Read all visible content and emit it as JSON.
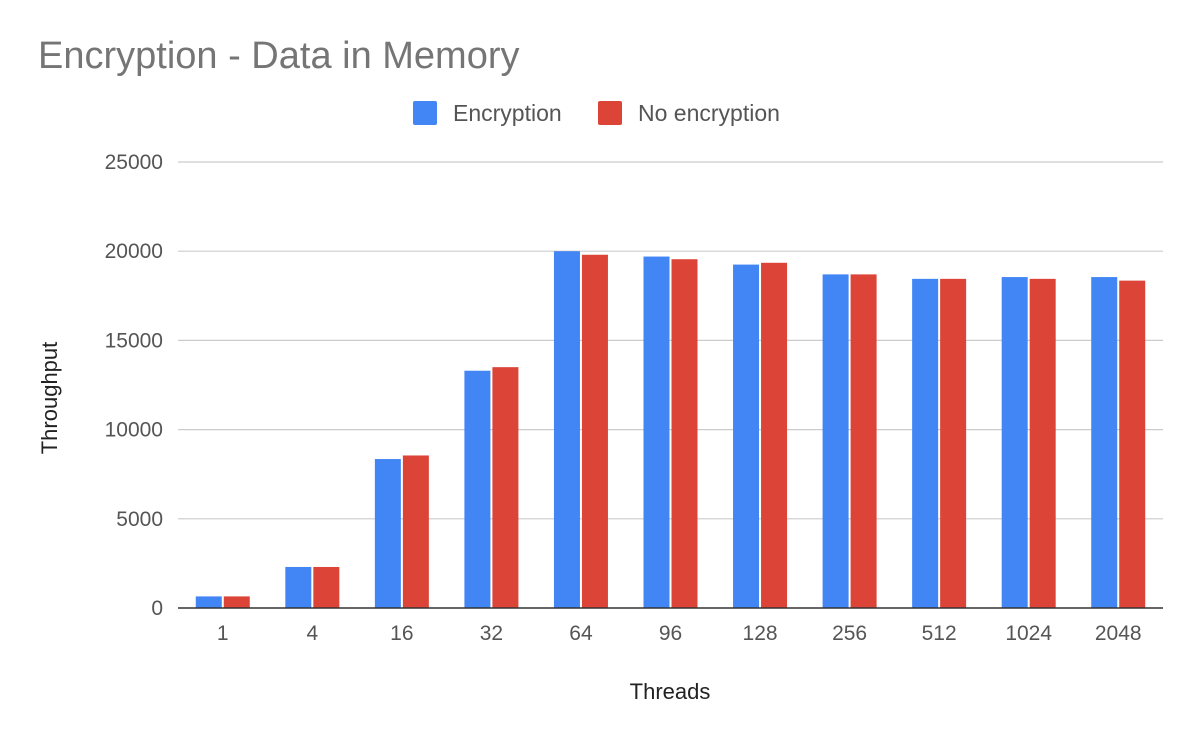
{
  "chart_data": {
    "type": "bar",
    "title": "Encryption - Data in Memory",
    "xlabel": "Threads",
    "ylabel": "Throughput",
    "categories": [
      "1",
      "4",
      "16",
      "32",
      "64",
      "96",
      "128",
      "256",
      "512",
      "1024",
      "2048"
    ],
    "series": [
      {
        "name": "Encryption",
        "color": "#4285F4",
        "values": [
          650,
          2300,
          8350,
          13300,
          20000,
          19700,
          19250,
          18700,
          18450,
          18550,
          18550
        ]
      },
      {
        "name": "No encryption",
        "color": "#DB4437",
        "values": [
          650,
          2300,
          8550,
          13500,
          19800,
          19550,
          19350,
          18700,
          18450,
          18450,
          18350
        ]
      }
    ],
    "ylim": [
      0,
      25000
    ],
    "yticks": [
      0,
      5000,
      10000,
      15000,
      20000,
      25000
    ],
    "grid": true,
    "legend_position": "top-center"
  }
}
